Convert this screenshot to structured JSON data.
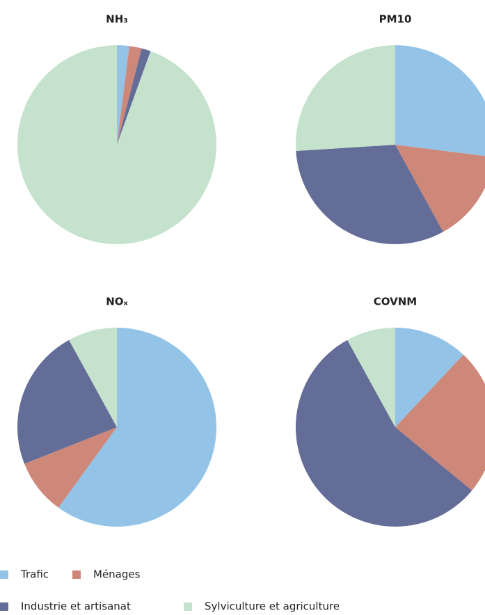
{
  "chart_data": [
    {
      "type": "pie",
      "title": "NH₃",
      "values": [
        2,
        2,
        1.5,
        94.5
      ]
    },
    {
      "type": "pie",
      "title": "PM10",
      "values": [
        27,
        15,
        32,
        26
      ]
    },
    {
      "type": "pie",
      "title": "NOₓ",
      "values": [
        60,
        9,
        23,
        8
      ]
    },
    {
      "type": "pie",
      "title": "COVNM",
      "values": [
        12,
        24,
        56,
        8
      ]
    }
  ],
  "legend": {
    "labels": [
      "Trafic",
      "Ménages",
      "Industrie et artisanat",
      "Sylviculture et agriculture"
    ],
    "colors": [
      "#93c4e8",
      "#cd887a",
      "#646c98",
      "#c4e2cc"
    ]
  }
}
